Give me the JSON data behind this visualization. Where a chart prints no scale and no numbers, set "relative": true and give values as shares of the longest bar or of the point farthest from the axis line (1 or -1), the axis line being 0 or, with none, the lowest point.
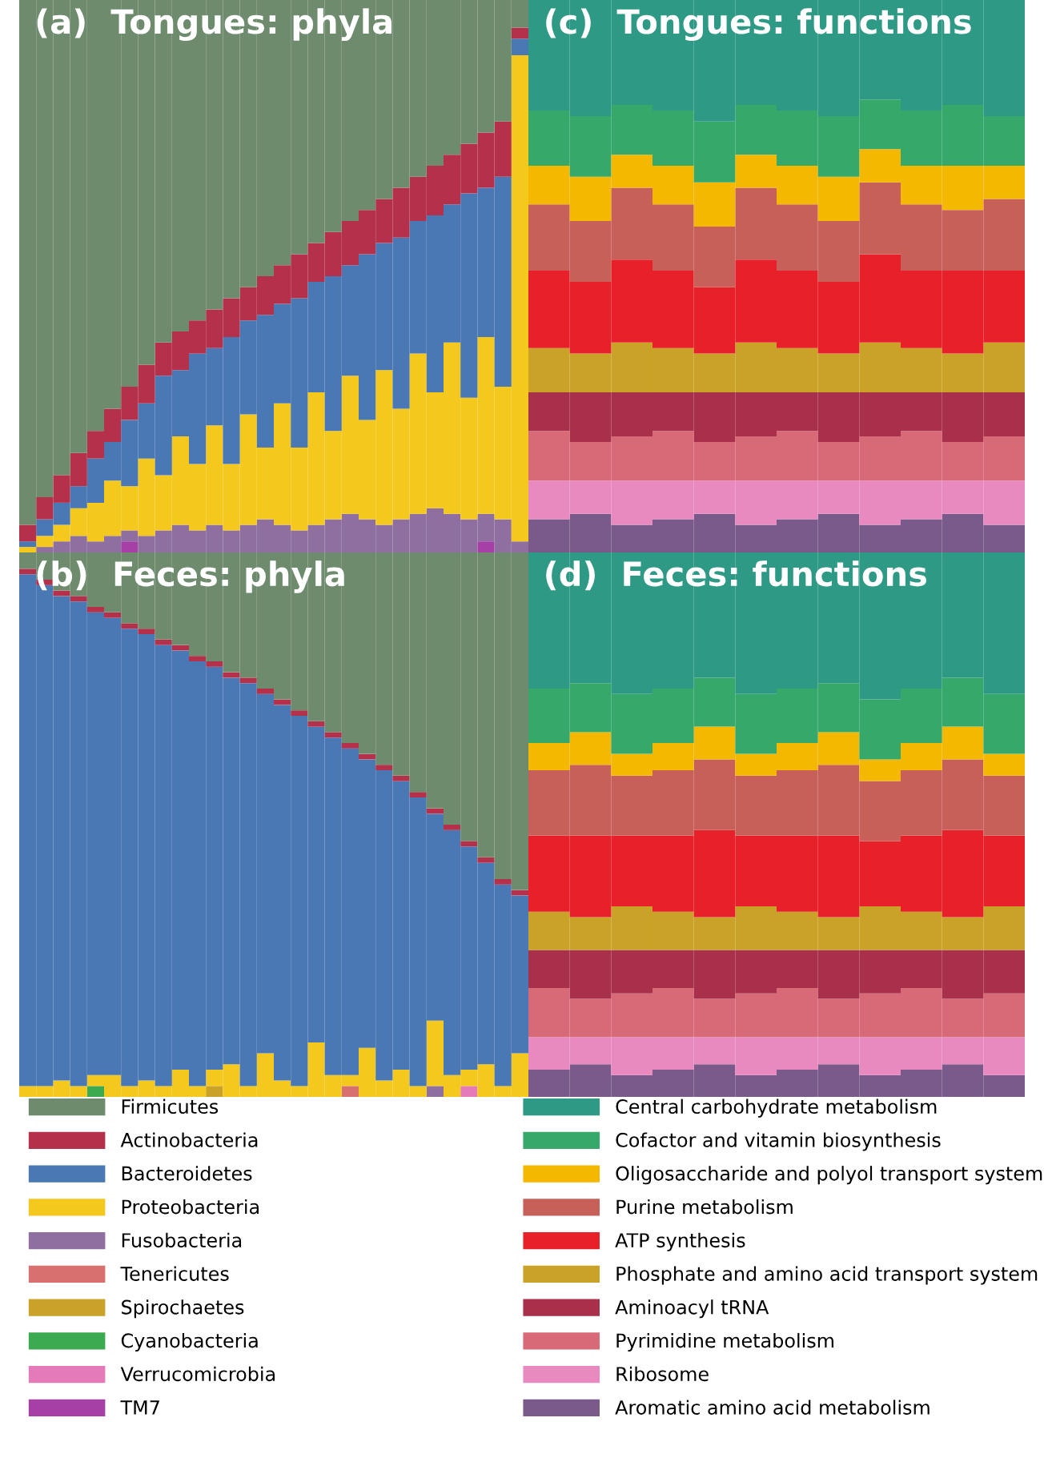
{
  "chart_data": [
    {
      "type": "bar",
      "title": "(a)  Tongues: phyla",
      "stacked": true,
      "relative": true,
      "legend": "bottom",
      "categories": [
        null,
        null,
        null,
        null,
        null,
        null,
        null,
        null,
        null,
        null,
        null,
        null,
        null,
        null,
        null,
        null,
        null,
        null,
        null,
        null,
        null,
        null,
        null,
        null,
        null,
        null,
        null,
        null,
        null,
        null
      ],
      "series": [
        {
          "name": "TM7",
          "color": "#a63fa6",
          "values": [
            0,
            0,
            0,
            0,
            0,
            0,
            0.02,
            0,
            0,
            0,
            0,
            0,
            0,
            0,
            0,
            0,
            0,
            0,
            0,
            0,
            0,
            0,
            0,
            0,
            0,
            0,
            0,
            0.02,
            0,
            0
          ]
        },
        {
          "name": "Verrucomicrobia",
          "color": "#e57ab8",
          "values": [
            0,
            0,
            0,
            0,
            0,
            0,
            0,
            0,
            0,
            0,
            0,
            0,
            0,
            0,
            0,
            0,
            0,
            0,
            0,
            0,
            0,
            0,
            0,
            0,
            0,
            0,
            0,
            0,
            0,
            0
          ]
        },
        {
          "name": "Cyanobacteria",
          "color": "#3caa50",
          "values": [
            0,
            0,
            0,
            0,
            0,
            0,
            0,
            0,
            0,
            0,
            0,
            0,
            0,
            0,
            0,
            0,
            0,
            0,
            0,
            0,
            0,
            0,
            0,
            0,
            0,
            0,
            0,
            0,
            0,
            0
          ]
        },
        {
          "name": "Spirochaetes",
          "color": "#c9a227",
          "values": [
            0,
            0,
            0,
            0,
            0,
            0,
            0,
            0,
            0,
            0,
            0,
            0,
            0,
            0,
            0,
            0,
            0,
            0,
            0,
            0,
            0,
            0,
            0,
            0,
            0,
            0,
            0,
            0,
            0,
            0
          ]
        },
        {
          "name": "Tenericutes",
          "color": "#d97070",
          "values": [
            0,
            0,
            0,
            0,
            0,
            0,
            0,
            0,
            0,
            0,
            0,
            0,
            0,
            0,
            0,
            0,
            0,
            0,
            0,
            0,
            0,
            0,
            0,
            0,
            0,
            0,
            0,
            0,
            0,
            0
          ]
        },
        {
          "name": "Fusobacteria",
          "color": "#8e6fa0",
          "values": [
            0,
            0.01,
            0.02,
            0.03,
            0.02,
            0.03,
            0.02,
            0.03,
            0.04,
            0.05,
            0.04,
            0.05,
            0.04,
            0.05,
            0.06,
            0.05,
            0.04,
            0.05,
            0.06,
            0.07,
            0.06,
            0.05,
            0.06,
            0.07,
            0.08,
            0.07,
            0.06,
            0.05,
            0.06,
            0.02
          ]
        },
        {
          "name": "Proteobacteria",
          "color": "#f5c81e",
          "values": [
            0.01,
            0.02,
            0.03,
            0.05,
            0.07,
            0.1,
            0.08,
            0.14,
            0.1,
            0.16,
            0.12,
            0.18,
            0.12,
            0.2,
            0.13,
            0.22,
            0.15,
            0.24,
            0.16,
            0.25,
            0.18,
            0.28,
            0.2,
            0.29,
            0.21,
            0.31,
            0.22,
            0.32,
            0.24,
            0.88
          ]
        },
        {
          "name": "Bacteroidetes",
          "color": "#4a78b4",
          "values": [
            0.01,
            0.03,
            0.04,
            0.04,
            0.08,
            0.07,
            0.12,
            0.1,
            0.18,
            0.12,
            0.2,
            0.14,
            0.23,
            0.17,
            0.24,
            0.18,
            0.27,
            0.2,
            0.28,
            0.2,
            0.3,
            0.23,
            0.31,
            0.24,
            0.32,
            0.25,
            0.37,
            0.27,
            0.38,
            0.03
          ]
        },
        {
          "name": "Actinobacteria",
          "color": "#b5304a",
          "values": [
            0.03,
            0.04,
            0.05,
            0.06,
            0.05,
            0.06,
            0.06,
            0.07,
            0.06,
            0.07,
            0.06,
            0.07,
            0.07,
            0.06,
            0.07,
            0.07,
            0.08,
            0.07,
            0.08,
            0.08,
            0.08,
            0.08,
            0.09,
            0.08,
            0.09,
            0.09,
            0.09,
            0.1,
            0.1,
            0.02
          ]
        },
        {
          "name": "Firmicutes",
          "color": "#6e8b6e",
          "values": [
            0.95,
            0.9,
            0.86,
            0.82,
            0.78,
            0.74,
            0.7,
            0.66,
            0.62,
            0.6,
            0.58,
            0.56,
            0.54,
            0.52,
            0.5,
            0.48,
            0.46,
            0.44,
            0.42,
            0.4,
            0.38,
            0.36,
            0.34,
            0.32,
            0.3,
            0.28,
            0.26,
            0.24,
            0.22,
            0.05
          ]
        }
      ]
    },
    {
      "type": "bar",
      "title": "(c)  Tongues: functions",
      "stacked": true,
      "relative": true,
      "legend": "bottom",
      "categories": [
        null,
        null,
        null,
        null,
        null,
        null,
        null,
        null,
        null,
        null,
        null,
        null
      ],
      "series": [
        {
          "name": "Aromatic amino acid metabolism",
          "color": "#7a5a8a",
          "values": [
            0.06,
            0.07,
            0.05,
            0.06,
            0.07,
            0.05,
            0.06,
            0.07,
            0.05,
            0.06,
            0.07,
            0.05
          ]
        },
        {
          "name": "Ribosome",
          "color": "#e88ac0",
          "values": [
            0.07,
            0.06,
            0.08,
            0.07,
            0.06,
            0.08,
            0.07,
            0.06,
            0.08,
            0.07,
            0.06,
            0.08
          ]
        },
        {
          "name": "Pyrimidine metabolism",
          "color": "#d86a78",
          "values": [
            0.09,
            0.07,
            0.08,
            0.09,
            0.07,
            0.08,
            0.09,
            0.07,
            0.08,
            0.09,
            0.07,
            0.08
          ]
        },
        {
          "name": "Aminoacyl tRNA",
          "color": "#a8304a",
          "values": [
            0.07,
            0.09,
            0.08,
            0.07,
            0.09,
            0.08,
            0.07,
            0.09,
            0.08,
            0.07,
            0.09,
            0.08
          ]
        },
        {
          "name": "Phosphate and amino acid transport system",
          "color": "#c9a227",
          "values": [
            0.08,
            0.07,
            0.09,
            0.08,
            0.07,
            0.09,
            0.08,
            0.07,
            0.09,
            0.08,
            0.07,
            0.09
          ]
        },
        {
          "name": "ATP synthesis",
          "color": "#e8202a",
          "values": [
            0.14,
            0.13,
            0.15,
            0.14,
            0.12,
            0.15,
            0.14,
            0.13,
            0.16,
            0.14,
            0.15,
            0.13
          ]
        },
        {
          "name": "Purine metabolism",
          "color": "#c8605a",
          "values": [
            0.12,
            0.11,
            0.13,
            0.12,
            0.11,
            0.13,
            0.12,
            0.11,
            0.13,
            0.12,
            0.11,
            0.13
          ]
        },
        {
          "name": "Oligosaccharide and polyol transport system",
          "color": "#f5b800",
          "values": [
            0.07,
            0.08,
            0.06,
            0.07,
            0.08,
            0.06,
            0.07,
            0.08,
            0.06,
            0.07,
            0.08,
            0.06
          ]
        },
        {
          "name": "Cofactor and vitamin biosynthesis",
          "color": "#35a86a",
          "values": [
            0.1,
            0.11,
            0.09,
            0.1,
            0.11,
            0.09,
            0.1,
            0.11,
            0.09,
            0.1,
            0.11,
            0.09
          ]
        },
        {
          "name": "Central carbohydrate metabolism",
          "color": "#2e9a86",
          "values": [
            0.2,
            0.21,
            0.19,
            0.2,
            0.22,
            0.19,
            0.2,
            0.21,
            0.18,
            0.2,
            0.19,
            0.21
          ]
        }
      ]
    },
    {
      "type": "bar",
      "title": "(b)  Feces: phyla",
      "stacked": true,
      "relative": true,
      "categories": [
        null,
        null,
        null,
        null,
        null,
        null,
        null,
        null,
        null,
        null,
        null,
        null,
        null,
        null,
        null,
        null,
        null,
        null,
        null,
        null,
        null,
        null,
        null,
        null,
        null,
        null,
        null,
        null,
        null,
        null
      ],
      "series": [
        {
          "color": "#e57ab8",
          "values": [
            0,
            0,
            0,
            0,
            0,
            0,
            0,
            0,
            0,
            0,
            0,
            0,
            0,
            0,
            0,
            0,
            0,
            0,
            0,
            0,
            0,
            0,
            0,
            0,
            0,
            0,
            0.02,
            0,
            0,
            0
          ]
        },
        {
          "color": "#3caa50",
          "values": [
            0,
            0,
            0,
            0,
            0.02,
            0,
            0,
            0,
            0,
            0,
            0,
            0,
            0,
            0,
            0,
            0,
            0,
            0,
            0,
            0,
            0,
            0,
            0,
            0,
            0,
            0,
            0,
            0,
            0,
            0
          ]
        },
        {
          "color": "#c9a227",
          "values": [
            0,
            0,
            0,
            0,
            0,
            0,
            0,
            0,
            0,
            0,
            0,
            0.02,
            0,
            0,
            0,
            0,
            0,
            0,
            0,
            0,
            0,
            0,
            0,
            0,
            0,
            0,
            0,
            0,
            0,
            0
          ]
        },
        {
          "color": "#d97070",
          "values": [
            0,
            0,
            0,
            0,
            0,
            0,
            0,
            0,
            0,
            0,
            0,
            0,
            0,
            0,
            0,
            0,
            0,
            0,
            0,
            0.02,
            0,
            0,
            0,
            0,
            0,
            0,
            0,
            0,
            0,
            0
          ]
        },
        {
          "color": "#8e6fa0",
          "values": [
            0,
            0,
            0,
            0,
            0,
            0,
            0,
            0,
            0,
            0,
            0,
            0,
            0,
            0,
            0,
            0,
            0,
            0,
            0,
            0,
            0,
            0,
            0,
            0,
            0.02,
            0,
            0,
            0,
            0,
            0
          ]
        },
        {
          "color": "#f5c81e",
          "values": [
            0.02,
            0.02,
            0.03,
            0.02,
            0.02,
            0.04,
            0.02,
            0.03,
            0.02,
            0.05,
            0.02,
            0.03,
            0.06,
            0.02,
            0.08,
            0.03,
            0.02,
            0.1,
            0.04,
            0.02,
            0.09,
            0.03,
            0.05,
            0.02,
            0.12,
            0.04,
            0.03,
            0.06,
            0.02,
            0.08
          ]
        },
        {
          "color": "#4a78b4",
          "values": [
            0.94,
            0.92,
            0.89,
            0.89,
            0.85,
            0.84,
            0.84,
            0.82,
            0.81,
            0.77,
            0.78,
            0.74,
            0.71,
            0.74,
            0.66,
            0.69,
            0.68,
            0.58,
            0.62,
            0.6,
            0.53,
            0.57,
            0.53,
            0.53,
            0.38,
            0.45,
            0.41,
            0.37,
            0.37,
            0.29
          ]
        },
        {
          "color": "#b5304a",
          "values": [
            0.01,
            0.01,
            0.01,
            0.01,
            0.01,
            0.01,
            0.01,
            0.01,
            0.01,
            0.01,
            0.01,
            0.01,
            0.01,
            0.01,
            0.01,
            0.01,
            0.01,
            0.01,
            0.01,
            0.01,
            0.01,
            0.01,
            0.01,
            0.01,
            0.01,
            0.01,
            0.01,
            0.01,
            0.01,
            0.01
          ]
        },
        {
          "color": "#6e8b6e",
          "values": [
            0.03,
            0.05,
            0.07,
            0.08,
            0.1,
            0.11,
            0.13,
            0.14,
            0.16,
            0.17,
            0.19,
            0.2,
            0.22,
            0.23,
            0.25,
            0.27,
            0.29,
            0.31,
            0.33,
            0.35,
            0.37,
            0.39,
            0.41,
            0.44,
            0.47,
            0.5,
            0.53,
            0.56,
            0.6,
            0.62
          ]
        }
      ]
    },
    {
      "type": "bar",
      "title": "(d)  Feces: functions",
      "stacked": true,
      "relative": true,
      "categories": [
        null,
        null,
        null,
        null,
        null,
        null,
        null,
        null,
        null,
        null,
        null,
        null
      ],
      "series": [
        {
          "color": "#7a5a8a",
          "values": [
            0.05,
            0.06,
            0.04,
            0.05,
            0.06,
            0.04,
            0.05,
            0.06,
            0.04,
            0.05,
            0.06,
            0.04
          ]
        },
        {
          "color": "#e88ac0",
          "values": [
            0.06,
            0.05,
            0.07,
            0.06,
            0.05,
            0.07,
            0.06,
            0.05,
            0.07,
            0.06,
            0.05,
            0.07
          ]
        },
        {
          "color": "#d86a78",
          "values": [
            0.09,
            0.07,
            0.08,
            0.09,
            0.07,
            0.08,
            0.09,
            0.07,
            0.08,
            0.09,
            0.07,
            0.08
          ]
        },
        {
          "color": "#a8304a",
          "values": [
            0.07,
            0.09,
            0.08,
            0.07,
            0.09,
            0.08,
            0.07,
            0.09,
            0.08,
            0.07,
            0.09,
            0.08
          ]
        },
        {
          "color": "#c9a227",
          "values": [
            0.07,
            0.06,
            0.08,
            0.07,
            0.06,
            0.08,
            0.07,
            0.06,
            0.08,
            0.07,
            0.06,
            0.08
          ]
        },
        {
          "color": "#e8202a",
          "values": [
            0.14,
            0.15,
            0.13,
            0.14,
            0.16,
            0.13,
            0.14,
            0.15,
            0.12,
            0.14,
            0.16,
            0.13
          ]
        },
        {
          "color": "#c8605a",
          "values": [
            0.12,
            0.13,
            0.11,
            0.12,
            0.13,
            0.11,
            0.12,
            0.13,
            0.11,
            0.12,
            0.13,
            0.11
          ]
        },
        {
          "color": "#f5b800",
          "values": [
            0.05,
            0.06,
            0.04,
            0.05,
            0.06,
            0.04,
            0.05,
            0.06,
            0.04,
            0.05,
            0.06,
            0.04
          ]
        },
        {
          "color": "#35a86a",
          "values": [
            0.1,
            0.09,
            0.11,
            0.1,
            0.09,
            0.11,
            0.1,
            0.09,
            0.11,
            0.1,
            0.09,
            0.11
          ]
        },
        {
          "color": "#2e9a86",
          "values": [
            0.25,
            0.24,
            0.26,
            0.25,
            0.23,
            0.26,
            0.25,
            0.24,
            0.27,
            0.25,
            0.23,
            0.26
          ]
        }
      ]
    }
  ]
}
